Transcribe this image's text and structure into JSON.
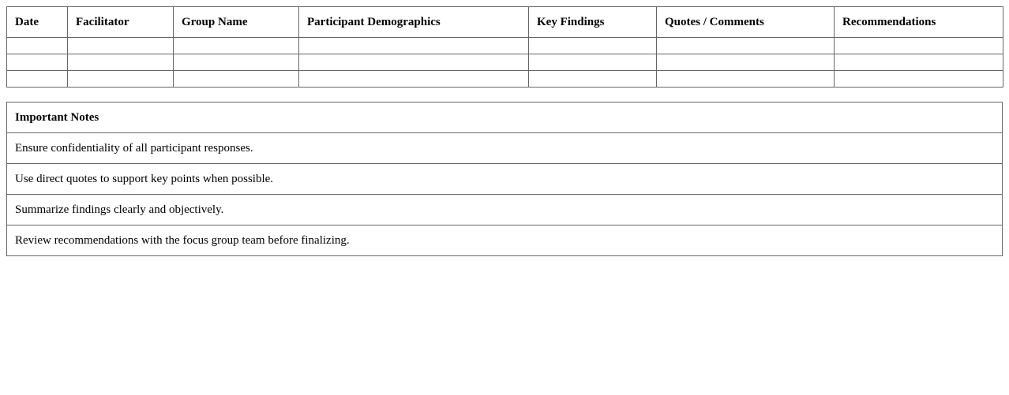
{
  "report_table": {
    "headers": [
      "Date",
      "Facilitator",
      "Group Name",
      "Participant Demographics",
      "Key Findings",
      "Quotes / Comments",
      "Recommendations"
    ],
    "rows": [
      [
        "",
        "",
        "",
        "",
        "",
        "",
        ""
      ],
      [
        "",
        "",
        "",
        "",
        "",
        "",
        ""
      ],
      [
        "",
        "",
        "",
        "",
        "",
        "",
        ""
      ]
    ]
  },
  "notes": {
    "title": "Important Notes",
    "items": [
      "Ensure confidentiality of all participant responses.",
      "Use direct quotes to support key points when possible.",
      "Summarize findings clearly and objectively.",
      "Review recommendations with the focus group team before finalizing."
    ]
  }
}
